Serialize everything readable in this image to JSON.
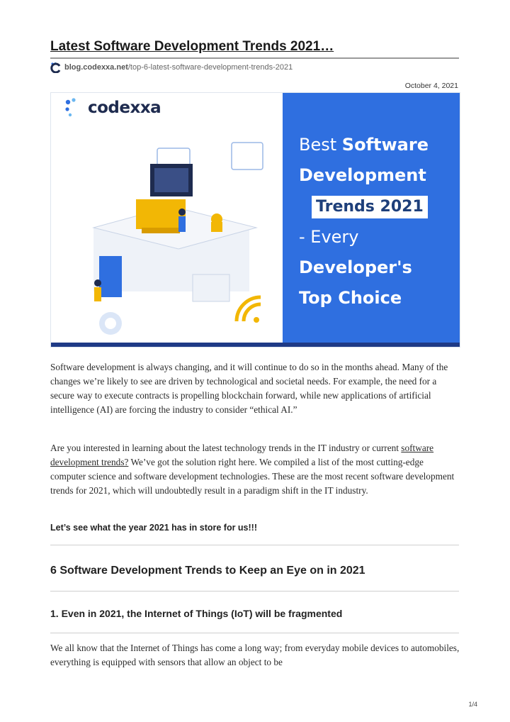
{
  "header": {
    "title": "Latest Software Development Trends 2021…",
    "source_host": "blog.codexxa.net",
    "source_path": "/top-6-latest-software-development-trends-2021",
    "date": "October 4, 2021"
  },
  "hero": {
    "brand": "codexxa",
    "headline": {
      "line1_a": "Best",
      "line1_b": "Software",
      "line2": "Development",
      "line3_box": "Trends 2021",
      "line4": "- Every",
      "line5": "Developer's",
      "line6": "Top Choice"
    },
    "colors": {
      "blue_panel": "#2f6fe0",
      "navy": "#1e2b4f",
      "accent_yellow": "#f2b705"
    }
  },
  "body": {
    "p1": "Software development is always changing, and it will continue to do so in the months ahead. Many of the changes we’re likely to see are driven by technological and societal needs. For example, the need for a secure way to execute contracts is propelling blockchain forward, while new applications of artificial intelligence (AI) are forcing the industry to consider “ethical AI.”",
    "p2_before": "Are you interested in learning about the latest technology trends in the IT industry or current ",
    "p2_link": "software development trends?",
    "p2_after": " We’ve got the solution right here. We compiled a list of the most cutting-edge computer science and software development technologies. These are the most recent software development trends for 2021, which will undoubtedly result in a paradigm shift in the IT industry.",
    "callout": "Let’s see what the year 2021 has in store for us!!!",
    "h2": "6 Software Development Trends to Keep an Eye on in 2021",
    "h3": "1. Even in 2021, the Internet of Things (IoT) will be fragmented",
    "p3": "We all know that the Internet of Things has come a long way; from everyday mobile devices to automobiles, everything is equipped with sensors that allow an object to be"
  },
  "footer": {
    "page": "1/4"
  }
}
